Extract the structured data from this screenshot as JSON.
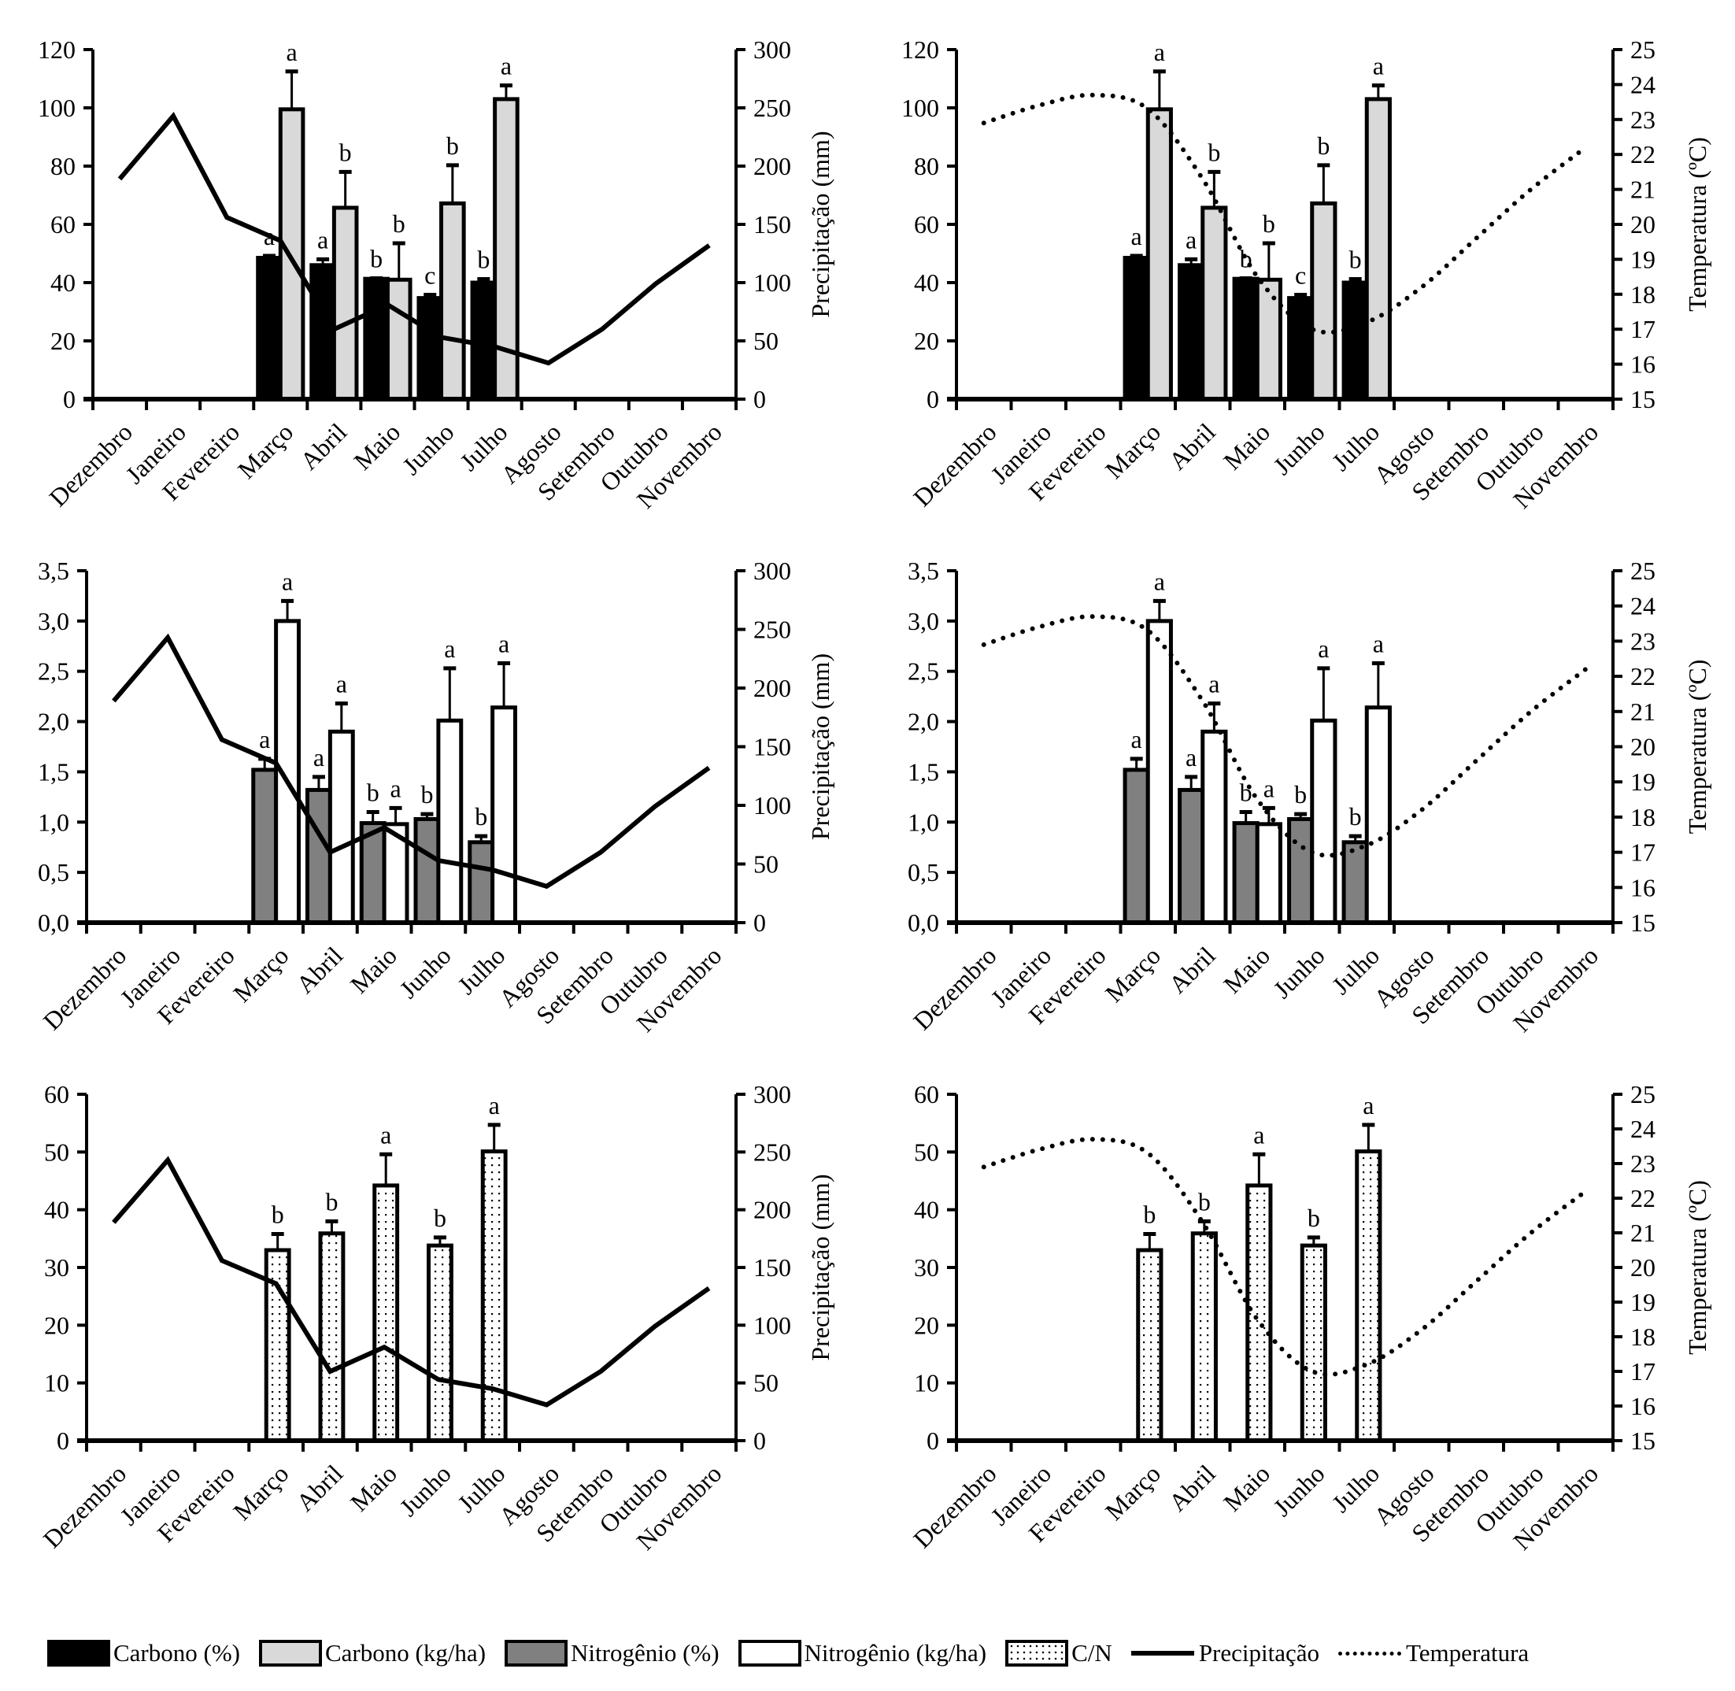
{
  "chart_data": [
    {
      "id": "carbon-precip",
      "type": "bar",
      "title": "",
      "categories": [
        "Dezembro",
        "Janeiro",
        "Fevereiro",
        "Março",
        "Abril",
        "Maio",
        "Junho",
        "Julho",
        "Agosto",
        "Setembro",
        "Outubro",
        "Novembro"
      ],
      "ylim": [
        0,
        120
      ],
      "yticks": [
        "0",
        "20",
        "40",
        "60",
        "80",
        "100",
        "120"
      ],
      "ytick_values": [
        0,
        20,
        40,
        60,
        80,
        100,
        120
      ],
      "y2lim": [
        0,
        300
      ],
      "y2ticks": [
        "0",
        "50",
        "100",
        "150",
        "200",
        "250",
        "300"
      ],
      "y2tick_values": [
        0,
        50,
        100,
        150,
        200,
        250,
        300
      ],
      "ylabel": "",
      "y2label": "Precipitação (mm)",
      "bar_series": [
        {
          "name": "Carbono (%)",
          "style": "carbon-pct",
          "values": [
            null,
            null,
            null,
            48.5,
            46.0,
            41.3,
            34.7,
            40.0,
            null,
            null,
            null,
            null
          ],
          "errors": [
            null,
            null,
            null,
            0.7,
            2.0,
            0.2,
            1.1,
            1.2,
            null,
            null,
            null,
            null
          ],
          "letters": [
            null,
            null,
            null,
            "a",
            "a",
            "b",
            "c",
            "b",
            null,
            null,
            null,
            null
          ]
        },
        {
          "name": "Carbono (kg/ha)",
          "style": "carbon-kg",
          "values": [
            null,
            null,
            null,
            99.5,
            65.7,
            41.0,
            67.2,
            103.0,
            null,
            null,
            null,
            null
          ],
          "errors": [
            null,
            null,
            null,
            13.0,
            12.3,
            12.5,
            13.1,
            4.7,
            null,
            null,
            null,
            null
          ],
          "letters": [
            null,
            null,
            null,
            "a",
            "b",
            "b",
            "b",
            "a",
            null,
            null,
            null,
            null
          ]
        }
      ],
      "line_series": [
        {
          "name": "Precipitação",
          "axis": "y2",
          "style": "solid",
          "values": [
            189,
            243,
            156,
            136,
            60,
            81,
            53,
            45,
            31,
            60,
            99,
            132
          ]
        }
      ]
    },
    {
      "id": "carbon-temp",
      "type": "bar",
      "title": "",
      "categories": [
        "Dezembro",
        "Janeiro",
        "Fevereiro",
        "Março",
        "Abril",
        "Maio",
        "Junho",
        "Julho",
        "Agosto",
        "Setembro",
        "Outubro",
        "Novembro"
      ],
      "ylim": [
        0,
        120
      ],
      "yticks": [
        "0",
        "20",
        "40",
        "60",
        "80",
        "100",
        "120"
      ],
      "ytick_values": [
        0,
        20,
        40,
        60,
        80,
        100,
        120
      ],
      "y2lim": [
        15,
        25
      ],
      "y2ticks": [
        "15",
        "16",
        "17",
        "18",
        "19",
        "20",
        "21",
        "22",
        "23",
        "24",
        "25"
      ],
      "y2tick_values": [
        15,
        16,
        17,
        18,
        19,
        20,
        21,
        22,
        23,
        24,
        25
      ],
      "ylabel": "",
      "y2label": "Temperatura (ºC)",
      "bar_series": [
        {
          "name": "Carbono (%)",
          "style": "carbon-pct",
          "values": [
            null,
            null,
            null,
            48.5,
            46.0,
            41.3,
            34.7,
            40.0,
            null,
            null,
            null,
            null
          ],
          "errors": [
            null,
            null,
            null,
            0.7,
            2.0,
            0.2,
            1.1,
            1.2,
            null,
            null,
            null,
            null
          ],
          "letters": [
            null,
            null,
            null,
            "a",
            "a",
            "b",
            "c",
            "b",
            null,
            null,
            null,
            null
          ]
        },
        {
          "name": "Carbono (kg/ha)",
          "style": "carbon-kg",
          "values": [
            null,
            null,
            null,
            99.5,
            65.7,
            41.0,
            67.2,
            103.0,
            null,
            null,
            null,
            null
          ],
          "errors": [
            null,
            null,
            null,
            13.0,
            12.3,
            12.5,
            13.1,
            4.7,
            null,
            null,
            null,
            null
          ],
          "letters": [
            null,
            null,
            null,
            "a",
            "b",
            "b",
            "b",
            "a",
            null,
            null,
            null,
            null
          ]
        }
      ],
      "line_series": [
        {
          "name": "Temperatura",
          "axis": "y2",
          "style": "dotted",
          "values": [
            22.9,
            23.4,
            23.7,
            23.3,
            21.3,
            18.5,
            17.0,
            17.2,
            18.2,
            19.6,
            21.0,
            22.2
          ]
        }
      ]
    },
    {
      "id": "nitrogen-precip",
      "type": "bar",
      "title": "",
      "categories": [
        "Dezembro",
        "Janeiro",
        "Fevereiro",
        "Março",
        "Abril",
        "Maio",
        "Junho",
        "Julho",
        "Agosto",
        "Setembro",
        "Outubro",
        "Novembro"
      ],
      "ylim": [
        0,
        3.5
      ],
      "yticks": [
        "0,0",
        "0,5",
        "1,0",
        "1,5",
        "2,0",
        "2,5",
        "3,0",
        "3,5"
      ],
      "ytick_values": [
        0,
        0.5,
        1,
        1.5,
        2,
        2.5,
        3,
        3.5
      ],
      "y2lim": [
        0,
        300
      ],
      "y2ticks": [
        "0",
        "50",
        "100",
        "150",
        "200",
        "250",
        "300"
      ],
      "y2tick_values": [
        0,
        50,
        100,
        150,
        200,
        250,
        300
      ],
      "ylabel": "",
      "y2label": "Precipitação (mm)",
      "bar_series": [
        {
          "name": "Nitrogênio (%)",
          "style": "nitrogen-pct",
          "values": [
            null,
            null,
            null,
            1.52,
            1.32,
            0.99,
            1.03,
            0.8,
            null,
            null,
            null,
            null
          ],
          "errors": [
            null,
            null,
            null,
            0.11,
            0.13,
            0.11,
            0.05,
            0.06,
            null,
            null,
            null,
            null
          ],
          "letters": [
            null,
            null,
            null,
            "a",
            "a",
            "b",
            "b",
            "b",
            null,
            null,
            null,
            null
          ]
        },
        {
          "name": "Nitrogênio (kg/ha)",
          "style": "nitrogen-kg",
          "values": [
            null,
            null,
            null,
            3.0,
            1.9,
            0.98,
            2.01,
            2.14,
            null,
            null,
            null,
            null
          ],
          "errors": [
            null,
            null,
            null,
            0.2,
            0.28,
            0.16,
            0.52,
            0.44,
            null,
            null,
            null,
            null
          ],
          "letters": [
            null,
            null,
            null,
            "a",
            "a",
            "a",
            "a",
            "a",
            null,
            null,
            null,
            null
          ]
        }
      ],
      "line_series": [
        {
          "name": "Precipitação",
          "axis": "y2",
          "style": "solid",
          "values": [
            189,
            243,
            156,
            136,
            60,
            81,
            53,
            45,
            31,
            60,
            99,
            132
          ]
        }
      ]
    },
    {
      "id": "nitrogen-temp",
      "type": "bar",
      "title": "",
      "categories": [
        "Dezembro",
        "Janeiro",
        "Fevereiro",
        "Março",
        "Abril",
        "Maio",
        "Junho",
        "Julho",
        "Agosto",
        "Setembro",
        "Outubro",
        "Novembro"
      ],
      "ylim": [
        0,
        3.5
      ],
      "yticks": [
        "0,0",
        "0,5",
        "1,0",
        "1,5",
        "2,0",
        "2,5",
        "3,0",
        "3,5"
      ],
      "ytick_values": [
        0,
        0.5,
        1,
        1.5,
        2,
        2.5,
        3,
        3.5
      ],
      "y2lim": [
        15,
        25
      ],
      "y2ticks": [
        "15",
        "16",
        "17",
        "18",
        "19",
        "20",
        "21",
        "22",
        "23",
        "24",
        "25"
      ],
      "y2tick_values": [
        15,
        16,
        17,
        18,
        19,
        20,
        21,
        22,
        23,
        24,
        25
      ],
      "ylabel": "",
      "y2label": "Temperatura (ºC)",
      "bar_series": [
        {
          "name": "Nitrogênio (%)",
          "style": "nitrogen-pct",
          "values": [
            null,
            null,
            null,
            1.52,
            1.32,
            0.99,
            1.03,
            0.8,
            null,
            null,
            null,
            null
          ],
          "errors": [
            null,
            null,
            null,
            0.11,
            0.13,
            0.11,
            0.05,
            0.06,
            null,
            null,
            null,
            null
          ],
          "letters": [
            null,
            null,
            null,
            "a",
            "a",
            "b",
            "b",
            "b",
            null,
            null,
            null,
            null
          ]
        },
        {
          "name": "Nitrogênio (kg/ha)",
          "style": "nitrogen-kg",
          "values": [
            null,
            null,
            null,
            3.0,
            1.9,
            0.98,
            2.01,
            2.14,
            null,
            null,
            null,
            null
          ],
          "errors": [
            null,
            null,
            null,
            0.2,
            0.28,
            0.16,
            0.52,
            0.44,
            null,
            null,
            null,
            null
          ],
          "letters": [
            null,
            null,
            null,
            "a",
            "a",
            "a",
            "a",
            "a",
            null,
            null,
            null,
            null
          ]
        }
      ],
      "line_series": [
        {
          "name": "Temperatura",
          "axis": "y2",
          "style": "dotted",
          "values": [
            22.9,
            23.4,
            23.7,
            23.3,
            21.3,
            18.5,
            17.0,
            17.2,
            18.2,
            19.6,
            21.0,
            22.2
          ]
        }
      ]
    },
    {
      "id": "cn-precip",
      "type": "bar",
      "title": "",
      "categories": [
        "Dezembro",
        "Janeiro",
        "Fevereiro",
        "Março",
        "Abril",
        "Maio",
        "Junho",
        "Julho",
        "Agosto",
        "Setembro",
        "Outubro",
        "Novembro"
      ],
      "ylim": [
        0,
        60
      ],
      "yticks": [
        "0",
        "10",
        "20",
        "30",
        "40",
        "50",
        "60"
      ],
      "ytick_values": [
        0,
        10,
        20,
        30,
        40,
        50,
        60
      ],
      "y2lim": [
        0,
        300
      ],
      "y2ticks": [
        "0",
        "50",
        "100",
        "150",
        "200",
        "250",
        "300"
      ],
      "y2tick_values": [
        0,
        50,
        100,
        150,
        200,
        250,
        300
      ],
      "ylabel": "",
      "y2label": "Precipitação (mm)",
      "bar_series": [
        {
          "name": "C/N",
          "style": "cn",
          "values": [
            null,
            null,
            null,
            33.0,
            35.9,
            44.2,
            33.8,
            50.1,
            null,
            null,
            null,
            null
          ],
          "errors": [
            null,
            null,
            null,
            2.8,
            2.1,
            5.4,
            1.4,
            4.6,
            null,
            null,
            null,
            null
          ],
          "letters": [
            null,
            null,
            null,
            "b",
            "b",
            "a",
            "b",
            "a",
            null,
            null,
            null,
            null
          ]
        }
      ],
      "line_series": [
        {
          "name": "Precipitação",
          "axis": "y2",
          "style": "solid",
          "values": [
            189,
            243,
            156,
            136,
            60,
            81,
            53,
            45,
            31,
            60,
            99,
            132
          ]
        }
      ]
    },
    {
      "id": "cn-temp",
      "type": "bar",
      "title": "",
      "categories": [
        "Dezembro",
        "Janeiro",
        "Fevereiro",
        "Março",
        "Abril",
        "Maio",
        "Junho",
        "Julho",
        "Agosto",
        "Setembro",
        "Outubro",
        "Novembro"
      ],
      "ylim": [
        0,
        60
      ],
      "yticks": [
        "0",
        "10",
        "20",
        "30",
        "40",
        "50",
        "60"
      ],
      "ytick_values": [
        0,
        10,
        20,
        30,
        40,
        50,
        60
      ],
      "y2lim": [
        15,
        25
      ],
      "y2ticks": [
        "15",
        "16",
        "17",
        "18",
        "19",
        "20",
        "21",
        "22",
        "23",
        "24",
        "25"
      ],
      "y2tick_values": [
        15,
        16,
        17,
        18,
        19,
        20,
        21,
        22,
        23,
        24,
        25
      ],
      "ylabel": "",
      "y2label": "Temperatura (ºC)",
      "bar_series": [
        {
          "name": "C/N",
          "style": "cn",
          "values": [
            null,
            null,
            null,
            33.0,
            35.9,
            44.2,
            33.8,
            50.1,
            null,
            null,
            null,
            null
          ],
          "errors": [
            null,
            null,
            null,
            2.8,
            2.1,
            5.4,
            1.4,
            4.6,
            null,
            null,
            null,
            null
          ],
          "letters": [
            null,
            null,
            null,
            "b",
            "b",
            "a",
            "b",
            "a",
            null,
            null,
            null,
            null
          ]
        }
      ],
      "line_series": [
        {
          "name": "Temperatura",
          "axis": "y2",
          "style": "dotted",
          "values": [
            22.9,
            23.4,
            23.7,
            23.3,
            21.3,
            18.5,
            17.0,
            17.2,
            18.2,
            19.6,
            21.0,
            22.2
          ]
        }
      ]
    }
  ],
  "legend": {
    "placement": "bottom",
    "items": [
      {
        "label": "Carbono (%)",
        "kind": "swatch",
        "style": "carbon-pct"
      },
      {
        "label": "Carbono (kg/ha)",
        "kind": "swatch",
        "style": "carbon-kg"
      },
      {
        "label": "Nitrogênio (%)",
        "kind": "swatch",
        "style": "nitrogen-pct"
      },
      {
        "label": "Nitrogênio (kg/ha)",
        "kind": "swatch",
        "style": "nitrogen-kg"
      },
      {
        "label": "C/N",
        "kind": "swatch",
        "style": "cn"
      },
      {
        "label": "Precipitação",
        "kind": "line",
        "style": "solid"
      },
      {
        "label": "Temperatura",
        "kind": "line",
        "style": "dotted"
      }
    ]
  },
  "colors": {
    "carbon_pct": "#000000",
    "carbon_kg": "#d9d9d9",
    "nitrogen_pct": "#808080",
    "nitrogen_kg": "#ffffff",
    "cn_fill": "#ffffff",
    "line": "#000000"
  }
}
